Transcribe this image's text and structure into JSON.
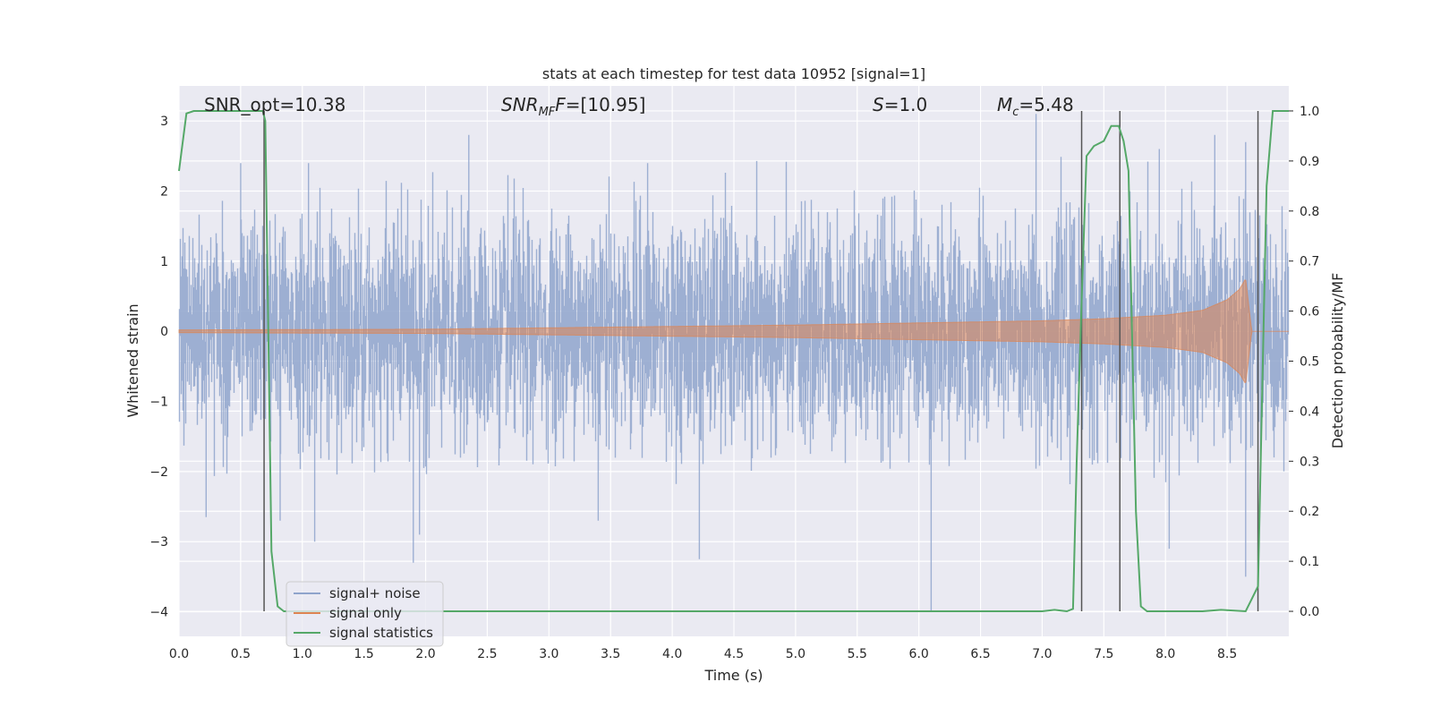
{
  "chart_data": {
    "type": "line",
    "title": "stats at each timestep for test data 10952 [signal=1]",
    "xlabel": "Time (s)",
    "ylabel": "Whitened strain",
    "y2label": "Detection probability/MF",
    "xlim": [
      0.0,
      9.0
    ],
    "ylim": [
      -4.35,
      3.5
    ],
    "y2lim": [
      -0.05,
      1.05
    ],
    "xticks": [
      "0.0",
      "0.5",
      "1.0",
      "1.5",
      "2.0",
      "2.5",
      "3.0",
      "3.5",
      "4.0",
      "4.5",
      "5.0",
      "5.5",
      "6.0",
      "6.5",
      "7.0",
      "7.5",
      "8.0",
      "8.5"
    ],
    "xtick_values": [
      0.0,
      0.5,
      1.0,
      1.5,
      2.0,
      2.5,
      3.0,
      3.5,
      4.0,
      4.5,
      5.0,
      5.5,
      6.0,
      6.5,
      7.0,
      7.5,
      8.0,
      8.5
    ],
    "yticks": [
      "3",
      "2",
      "1",
      "0",
      "−1",
      "−2",
      "−3",
      "−4"
    ],
    "ytick_values": [
      3,
      2,
      1,
      0,
      -1,
      -2,
      -3,
      -4
    ],
    "y2ticks": [
      "1.0",
      "0.9",
      "0.8",
      "0.7",
      "0.6",
      "0.5",
      "0.4",
      "0.3",
      "0.2",
      "0.1",
      "0.0"
    ],
    "y2tick_values": [
      1.0,
      0.9,
      0.8,
      0.7,
      0.6,
      0.5,
      0.4,
      0.3,
      0.2,
      0.1,
      0.0
    ],
    "grid": true,
    "legend_position": "lower-left",
    "annotations": {
      "snr_opt": "SNR_opt=10.38",
      "snr_mf_main": "SNR",
      "snr_mf_sub": "MF",
      "snr_mf_value": "=[10.95]",
      "s_main": "S",
      "s_value": "=1.0",
      "mc_main": "M",
      "mc_sub": "c",
      "mc_value": "=5.48"
    },
    "series": [
      {
        "name": "signal+ noise",
        "color": "#8fa4cc",
        "axis": "left",
        "description_values": {
          "typical_range": [
            -1.8,
            2.2
          ],
          "peaks": [
            [
              0.5,
              2.4
            ],
            [
              1.05,
              2.4
            ],
            [
              2.35,
              2.8
            ],
            [
              3.8,
              2.4
            ],
            [
              6.95,
              3.1
            ],
            [
              7.95,
              2.6
            ],
            [
              8.4,
              2.8
            ],
            [
              8.65,
              2.7
            ]
          ],
          "troughs": [
            [
              0.22,
              -2.65
            ],
            [
              0.82,
              -2.7
            ],
            [
              1.1,
              -3.0
            ],
            [
              1.9,
              -3.3
            ],
            [
              1.95,
              -2.9
            ],
            [
              3.4,
              -2.7
            ],
            [
              4.22,
              -3.25
            ],
            [
              6.1,
              -4.0
            ],
            [
              8.03,
              -3.1
            ],
            [
              8.65,
              -3.5
            ]
          ]
        }
      },
      {
        "name": "signal only",
        "color": "#dd8452",
        "axis": "left",
        "envelope_t": [
          0.0,
          2.0,
          3.0,
          4.0,
          5.0,
          6.0,
          7.0,
          7.5,
          8.0,
          8.3,
          8.5,
          8.6,
          8.65,
          8.68,
          8.7,
          9.0
        ],
        "envelope_a": [
          0.02,
          0.03,
          0.05,
          0.07,
          0.09,
          0.12,
          0.15,
          0.18,
          0.23,
          0.3,
          0.45,
          0.6,
          0.75,
          0.3,
          0.0,
          0.0
        ]
      },
      {
        "name": "signal statistics",
        "color": "#55a868",
        "axis": "right",
        "t": [
          0.0,
          0.06,
          0.12,
          0.68,
          0.7,
          0.75,
          0.8,
          0.85,
          7.0,
          7.1,
          7.2,
          7.25,
          7.28,
          7.32,
          7.36,
          7.42,
          7.5,
          7.56,
          7.62,
          7.66,
          7.7,
          7.76,
          7.8,
          7.85,
          8.3,
          8.45,
          8.65,
          8.75,
          8.82,
          8.87,
          9.0
        ],
        "v": [
          0.88,
          0.995,
          1.0,
          1.0,
          0.98,
          0.12,
          0.01,
          0.0,
          0.0,
          0.003,
          0.0,
          0.005,
          0.3,
          0.62,
          0.91,
          0.93,
          0.94,
          0.97,
          0.97,
          0.94,
          0.88,
          0.2,
          0.01,
          0.0,
          0.0,
          0.003,
          0.0,
          0.05,
          0.85,
          1.0,
          1.0
        ]
      }
    ],
    "vertical_lines": [
      0.69,
      7.32,
      7.63,
      8.75
    ]
  }
}
